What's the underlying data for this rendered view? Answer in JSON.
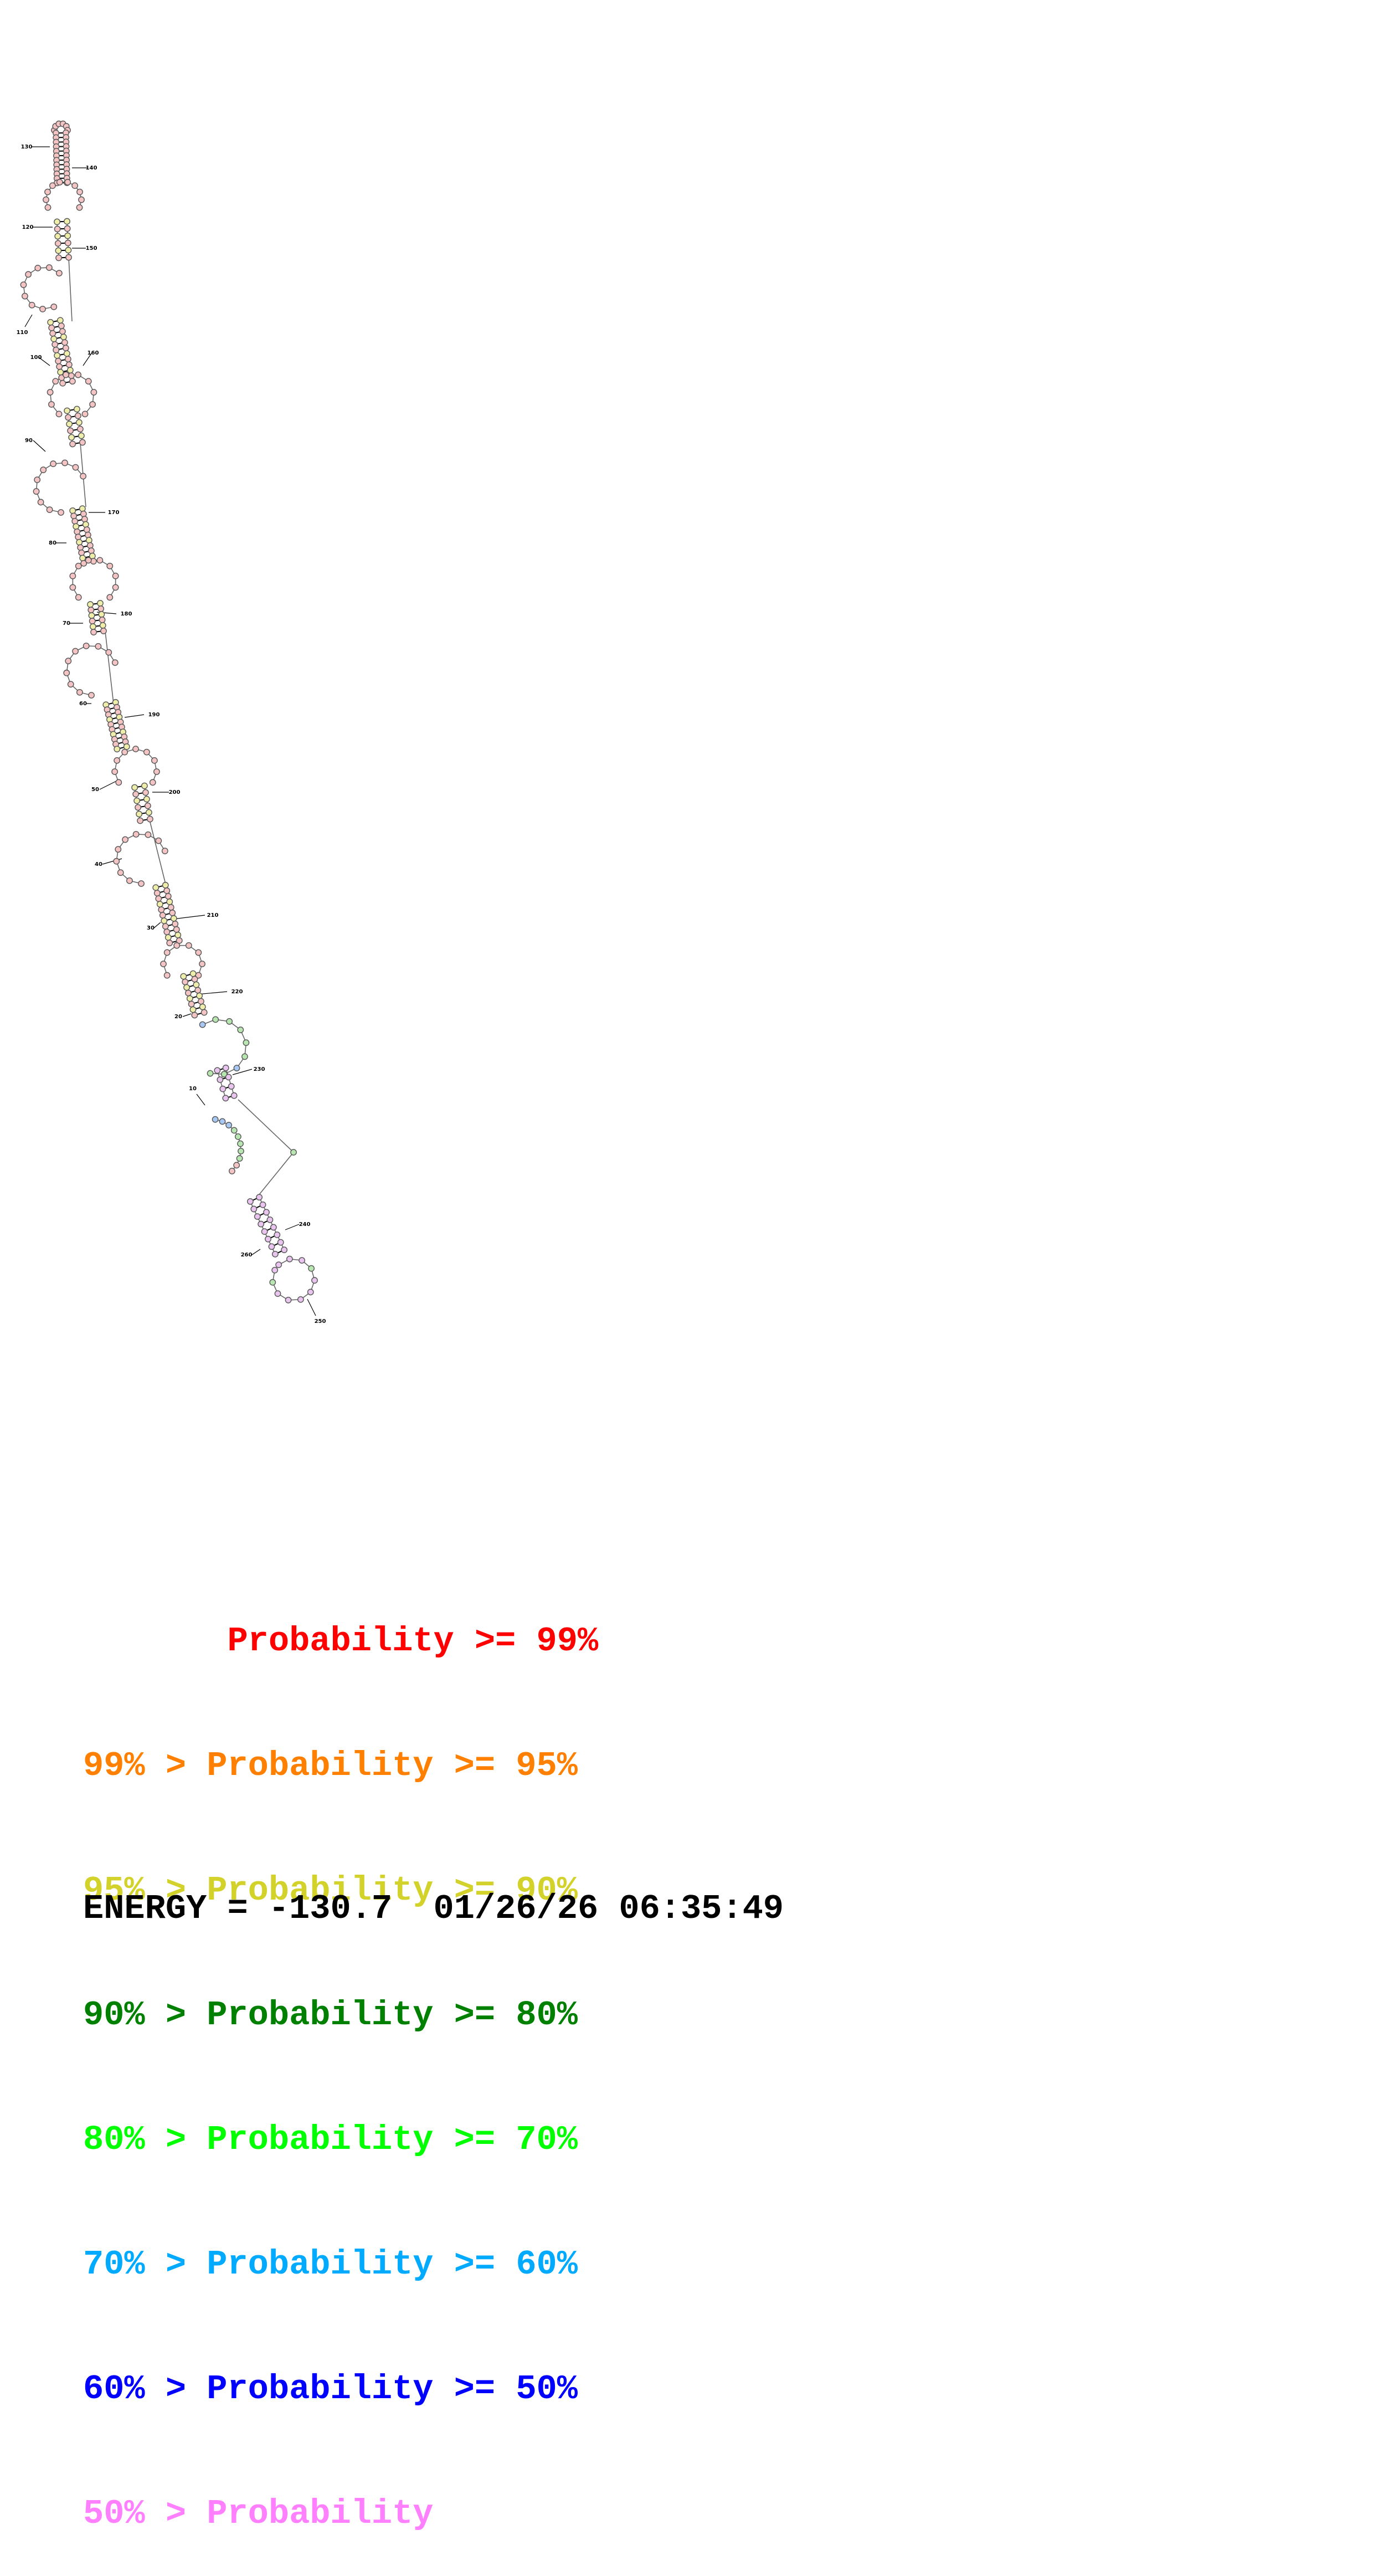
{
  "legend": [
    {
      "prefix": "       ",
      "text": "Probability >= 99%",
      "color": "#ff0000"
    },
    {
      "prefix": "99% > ",
      "text": "Probability >= 95%",
      "color": "#ff8000"
    },
    {
      "prefix": "95% > ",
      "text": "Probability >= 90%",
      "color": "#d2d22a"
    },
    {
      "prefix": "90% > ",
      "text": "Probability >= 80%",
      "color": "#008000"
    },
    {
      "prefix": "80% > ",
      "text": "Probability >= 70%",
      "color": "#00ff00"
    },
    {
      "prefix": "70% > ",
      "text": "Probability >= 60%",
      "color": "#00aaff"
    },
    {
      "prefix": "60% > ",
      "text": "Probability >= 50%",
      "color": "#0000ff"
    },
    {
      "prefix": "50% > ",
      "text": "Probability",
      "color": "#ff80ff"
    }
  ],
  "energy": "ENERGY = -130.7  01/26/26 06:35:49",
  "nucleotide_fill_colors": {
    "red": "#f4c4c4",
    "yellow": "#eeeeaa",
    "green": "#b8e6b0",
    "blue": "#a8c8f4",
    "pink": "#e8c4ee"
  },
  "index_labels": [
    "10",
    "20",
    "30",
    "40",
    "50",
    "60",
    "70",
    "80",
    "90",
    "100",
    "110",
    "120",
    "130",
    "140",
    "150",
    "160",
    "170",
    "180",
    "190",
    "200",
    "210",
    "220",
    "230",
    "240",
    "250",
    "260"
  ]
}
